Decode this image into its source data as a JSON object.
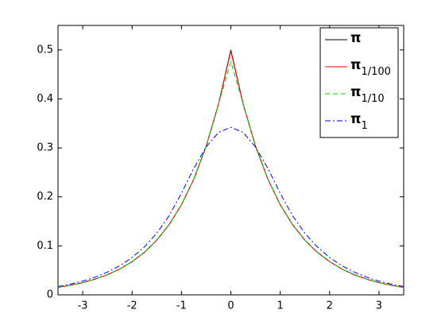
{
  "chart_data": {
    "type": "line",
    "x": [
      -3.5,
      -3.25,
      -3,
      -2.75,
      -2.5,
      -2.25,
      -2,
      -1.75,
      -1.5,
      -1.25,
      -1,
      -0.75,
      -0.5,
      -0.25,
      0,
      0.25,
      0.5,
      0.75,
      1,
      1.25,
      1.5,
      1.75,
      2,
      2.25,
      2.5,
      2.75,
      3,
      3.25,
      3.5
    ],
    "series": [
      {
        "name": "π",
        "color": "#000000",
        "dash": "none",
        "values": [
          0.0151,
          0.0194,
          0.0249,
          0.032,
          0.041,
          0.0527,
          0.0677,
          0.0869,
          0.1116,
          0.1433,
          0.1839,
          0.2362,
          0.3033,
          0.3894,
          0.5,
          0.3894,
          0.3033,
          0.2362,
          0.1839,
          0.1433,
          0.1116,
          0.0869,
          0.0677,
          0.0527,
          0.041,
          0.032,
          0.0249,
          0.0194,
          0.0151
        ]
      },
      {
        "name": "π",
        "subscript": "1/100",
        "color": "#ff0000",
        "dash": "none",
        "values": [
          0.0151,
          0.0194,
          0.0249,
          0.032,
          0.041,
          0.0527,
          0.0677,
          0.0869,
          0.1116,
          0.1433,
          0.1839,
          0.2362,
          0.3033,
          0.3894,
          0.4975,
          0.3894,
          0.3033,
          0.2362,
          0.1839,
          0.1433,
          0.1116,
          0.0869,
          0.0677,
          0.0527,
          0.041,
          0.032,
          0.0249,
          0.0194,
          0.0151
        ]
      },
      {
        "name": "π",
        "subscript": "1/10",
        "color": "#00cc00",
        "dash": "6 4",
        "values": [
          0.0151,
          0.0194,
          0.0249,
          0.032,
          0.0411,
          0.0528,
          0.0678,
          0.0871,
          0.1118,
          0.1435,
          0.1842,
          0.2366,
          0.3038,
          0.39,
          0.476,
          0.39,
          0.3038,
          0.2366,
          0.1842,
          0.1435,
          0.1118,
          0.0871,
          0.0678,
          0.0528,
          0.0411,
          0.032,
          0.0249,
          0.0194,
          0.0151
        ]
      },
      {
        "name": "π",
        "subscript": "1",
        "color": "#0000ff",
        "dash": "7 3 2 3",
        "values": [
          0.017,
          0.0219,
          0.0281,
          0.036,
          0.0463,
          0.0594,
          0.0763,
          0.098,
          0.1258,
          0.1615,
          0.2074,
          0.2581,
          0.3018,
          0.3315,
          0.342,
          0.3315,
          0.3018,
          0.2581,
          0.2074,
          0.1615,
          0.1258,
          0.098,
          0.0763,
          0.0594,
          0.0463,
          0.036,
          0.0281,
          0.0219,
          0.017
        ]
      }
    ],
    "xlim": [
      -3.5,
      3.5
    ],
    "xticks": [
      -3,
      -2,
      -1,
      0,
      1,
      2,
      3
    ],
    "ylim": [
      0,
      0.55
    ],
    "yticks": [
      0,
      0.1,
      0.2,
      0.3,
      0.4,
      0.5
    ],
    "grid": false,
    "legend": "northeast"
  }
}
